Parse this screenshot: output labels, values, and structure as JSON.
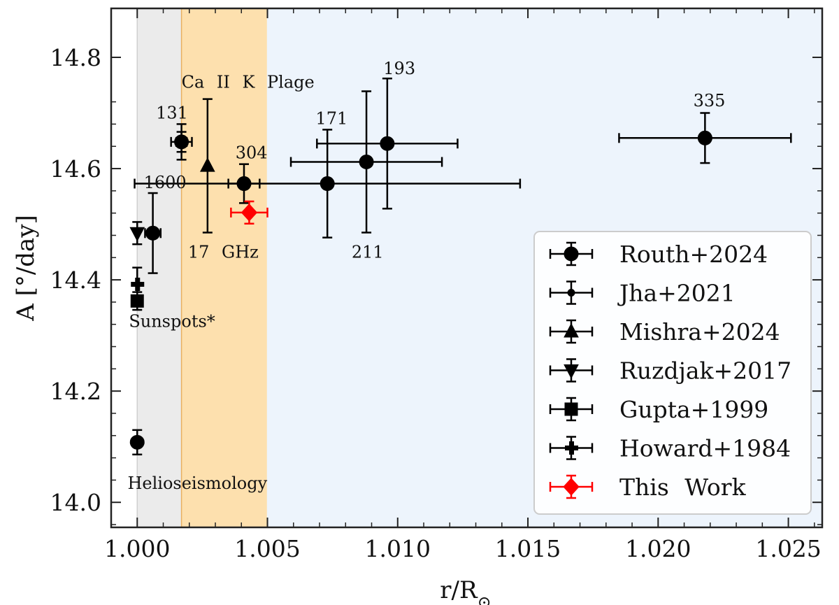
{
  "chart_data": {
    "type": "scatter",
    "xlabel": "r/R⊙",
    "ylabel": "A [°/day]",
    "xlim": [
      0.999,
      1.0263
    ],
    "ylim": [
      13.955,
      14.888
    ],
    "x_ticks": [
      1.0,
      1.005,
      1.01,
      1.015,
      1.02,
      1.025
    ],
    "x_tick_labels": [
      "1.000",
      "1.005",
      "1.010",
      "1.015",
      "1.020",
      "1.025"
    ],
    "y_ticks": [
      14.0,
      14.2,
      14.4,
      14.6,
      14.8
    ],
    "y_tick_labels": [
      "14.0",
      "14.2",
      "14.4",
      "14.6",
      "14.8"
    ],
    "shaded_regions": [
      {
        "x_from": 1.0,
        "x_to": 1.0017,
        "color": "#ebebeb",
        "edge": "#cfcfcf"
      },
      {
        "x_from": 1.0017,
        "x_to": 1.005,
        "color": "#fde0ae",
        "edge": "#e8b060"
      },
      {
        "x_from": 1.005,
        "x_to": 1.0263,
        "color": "#edf4fc",
        "edge": "#edf4fc"
      }
    ],
    "series": [
      {
        "name": "Routh+2024",
        "marker": "circle",
        "color": "#000000",
        "points": [
          {
            "x": 1.0,
            "y": 14.108,
            "xerr": 0,
            "yerr": 0.022
          },
          {
            "x": 1.0006,
            "y": 14.484,
            "xerr": 0.0003,
            "yerr": 0.072
          },
          {
            "x": 1.0017,
            "y": 14.648,
            "xerr": 0.0002,
            "yerr": 0.032
          },
          {
            "x": 1.0041,
            "y": 14.573,
            "xerr": 0.0006,
            "yerr": 0.035
          },
          {
            "x": 1.0073,
            "y": 14.573,
            "xerr": 0.0074,
            "yerr": 0.097
          },
          {
            "x": 1.0088,
            "y": 14.612,
            "xerr": 0.0029,
            "yerr": 0.127
          },
          {
            "x": 1.0096,
            "y": 14.645,
            "xerr": 0.0027,
            "yerr": 0.117
          },
          {
            "x": 1.0218,
            "y": 14.655,
            "xerr": 0.0033,
            "yerr": 0.045
          }
        ]
      },
      {
        "name": "Jha+2021",
        "marker": "small-circle",
        "color": "#000000",
        "points": [
          {
            "x": 1.0017,
            "y": 14.648,
            "xerr": 0.0004,
            "yerr": 0.018
          }
        ]
      },
      {
        "name": "Mishra+2024",
        "marker": "triangle-up",
        "color": "#000000",
        "points": [
          {
            "x": 1.0027,
            "y": 14.605,
            "xerr": 0,
            "yerr": 0.12
          }
        ]
      },
      {
        "name": "Ruzdjak+2017",
        "marker": "triangle-down",
        "color": "#000000",
        "points": [
          {
            "x": 1.0,
            "y": 14.484,
            "xerr": 0,
            "yerr": 0.02
          }
        ]
      },
      {
        "name": "Gupta+1999",
        "marker": "square",
        "color": "#000000",
        "points": [
          {
            "x": 1.0,
            "y": 14.362,
            "xerr": 0,
            "yerr": 0.016
          }
        ]
      },
      {
        "name": "Howard+1984",
        "marker": "plus",
        "color": "#000000",
        "points": [
          {
            "x": 1.0,
            "y": 14.392,
            "xerr": 0,
            "yerr": 0.03
          }
        ]
      },
      {
        "name": "This Work",
        "marker": "diamond",
        "color": "#ff0000",
        "points": [
          {
            "x": 1.0043,
            "y": 14.521,
            "xerr": 0.0007,
            "yerr": 0.02
          }
        ]
      }
    ],
    "annotations": [
      {
        "text": "1600",
        "x": 1.00025,
        "y": 14.565,
        "color": "#000000"
      },
      {
        "text": "131",
        "x": 1.00072,
        "y": 14.69,
        "color": "#000000"
      },
      {
        "text": "304",
        "x": 1.00377,
        "y": 14.618,
        "color": "#000000"
      },
      {
        "text": "171",
        "x": 1.00685,
        "y": 14.68,
        "color": "#000000"
      },
      {
        "text": "193",
        "x": 1.00945,
        "y": 14.77,
        "color": "#000000"
      },
      {
        "text": "211",
        "x": 1.00823,
        "y": 14.44,
        "color": "#000000"
      },
      {
        "text": "335",
        "x": 1.02135,
        "y": 14.712,
        "color": "#000000"
      },
      {
        "text": "17 GHz",
        "x": 1.00195,
        "y": 14.44,
        "color": "#ff0000"
      },
      {
        "text": "Ca II K Plage",
        "x": 1.0017,
        "y": 14.745,
        "color": "#000000"
      },
      {
        "text": "Sunspots*",
        "x": 0.99968,
        "y": 14.315,
        "color": "#000000"
      },
      {
        "text": "Helioseismology",
        "x": 0.99963,
        "y": 14.024,
        "color": "#000000"
      }
    ],
    "legend": {
      "location": "lower-right"
    }
  }
}
